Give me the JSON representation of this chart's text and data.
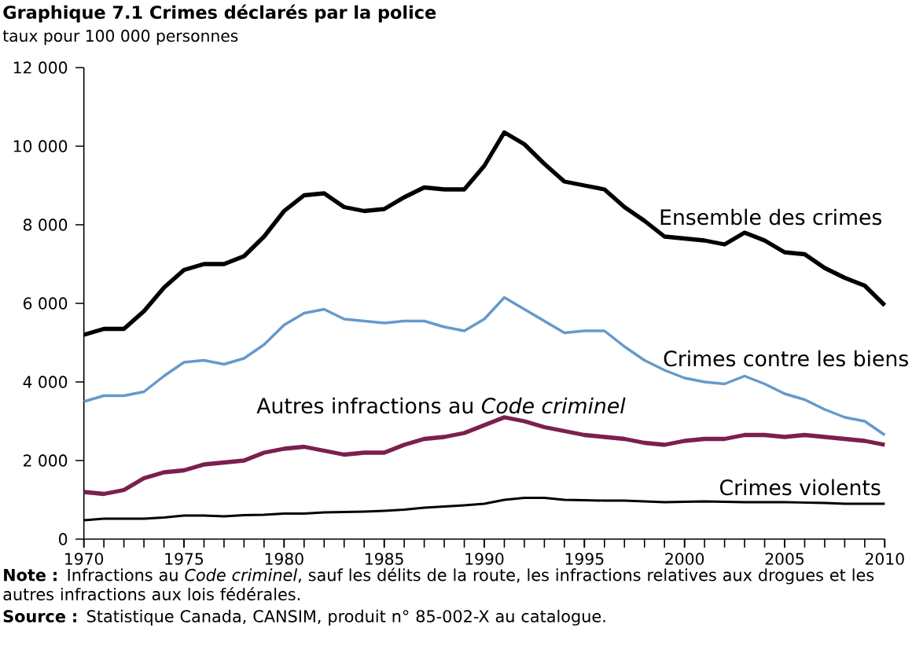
{
  "chart_data": {
    "type": "line",
    "title": "Graphique 7.1  Crimes déclarés par la police",
    "ylabel": "taux pour 100 000 personnes",
    "x": [
      1970,
      1971,
      1972,
      1973,
      1974,
      1975,
      1976,
      1977,
      1978,
      1979,
      1980,
      1981,
      1982,
      1983,
      1984,
      1985,
      1986,
      1987,
      1988,
      1989,
      1990,
      1991,
      1992,
      1993,
      1994,
      1995,
      1996,
      1997,
      1998,
      1999,
      2000,
      2001,
      2002,
      2003,
      2004,
      2005,
      2006,
      2007,
      2008,
      2009,
      2010
    ],
    "xlim": [
      1970,
      2010
    ],
    "xticks": [
      1970,
      1975,
      1980,
      1985,
      1990,
      1995,
      2000,
      2005,
      2010
    ],
    "ylim": [
      0,
      12000
    ],
    "yticks": [
      0,
      {
        "value": 2000,
        "label": "2 000"
      },
      {
        "value": 4000,
        "label": "4 000"
      },
      {
        "value": 6000,
        "label": "6 000"
      },
      {
        "value": 8000,
        "label": "8 000"
      },
      {
        "value": 10000,
        "label": "10 000"
      },
      {
        "value": 12000,
        "label": "12 000"
      }
    ],
    "series": [
      {
        "name": "Ensemble des crimes",
        "color": "#000000",
        "values": [
          5200,
          5350,
          5350,
          5800,
          6400,
          6850,
          7000,
          7000,
          7200,
          7700,
          8350,
          8750,
          8800,
          8450,
          8350,
          8400,
          8700,
          8950,
          8900,
          8900,
          9500,
          10350,
          10050,
          9550,
          9100,
          9000,
          8900,
          8450,
          8100,
          7700,
          7650,
          7600,
          7500,
          7800,
          7600,
          7300,
          7250,
          6900,
          6650,
          6450,
          5950
        ]
      },
      {
        "name": "Crimes contre les biens",
        "color": "#6699cc",
        "values": [
          3500,
          3650,
          3650,
          3750,
          4150,
          4500,
          4550,
          4450,
          4600,
          4950,
          5450,
          5750,
          5850,
          5600,
          5550,
          5500,
          5550,
          5550,
          5400,
          5300,
          5600,
          6150,
          5850,
          5550,
          5250,
          5300,
          5300,
          4900,
          4550,
          4300,
          4100,
          4000,
          3950,
          4150,
          3950,
          3700,
          3550,
          3300,
          3100,
          3000,
          2650
        ]
      },
      {
        "name": "Autres infractions au *Code criminel*",
        "color": "#7b1f4f",
        "values": [
          1200,
          1150,
          1250,
          1550,
          1700,
          1750,
          1900,
          1950,
          2000,
          2200,
          2300,
          2350,
          2250,
          2150,
          2200,
          2200,
          2400,
          2550,
          2600,
          2700,
          2900,
          3100,
          3000,
          2850,
          2750,
          2650,
          2600,
          2550,
          2450,
          2400,
          2500,
          2550,
          2550,
          2650,
          2650,
          2600,
          2650,
          2600,
          2550,
          2500,
          2400
        ]
      },
      {
        "name": "Crimes violents",
        "color": "#000000",
        "values": [
          480,
          520,
          520,
          520,
          550,
          600,
          600,
          580,
          610,
          620,
          650,
          650,
          680,
          690,
          700,
          720,
          750,
          800,
          830,
          860,
          900,
          1000,
          1050,
          1050,
          1000,
          990,
          980,
          980,
          960,
          940,
          950,
          960,
          950,
          940,
          940,
          940,
          930,
          920,
          900,
          900,
          900
        ]
      }
    ],
    "annotations": [
      "**Note :** Infractions au *Code criminel*, sauf les délits de la route, les infractions relatives aux drogues et les autres infractions aux lois fédérales.",
      "**Source :** Statistique Canada, CANSIM, produit n° 85-002-X au catalogue."
    ],
    "legend": false,
    "marker": "none",
    "line_style": "solid"
  }
}
